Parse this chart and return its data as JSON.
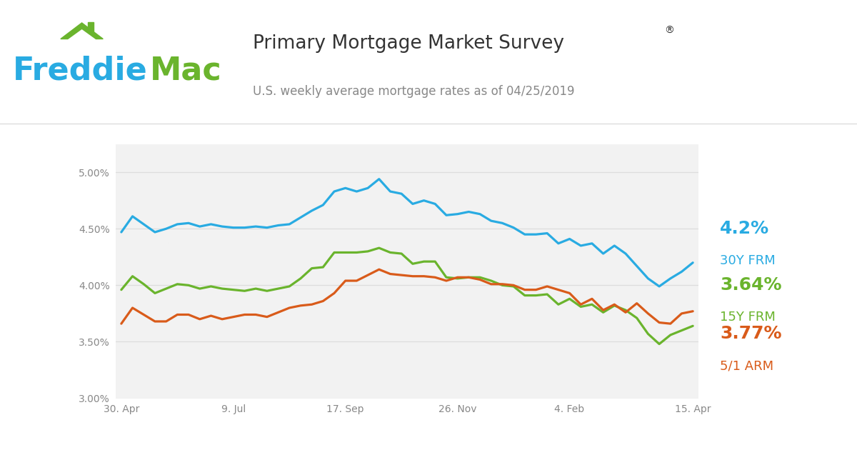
{
  "title_main": "Primary Mortgage Market Survey",
  "title_reg": "®",
  "subtitle": "U.S. weekly average mortgage rates as of 04/25/2019",
  "freddie_blue": "#29ABE2",
  "freddie_green": "#6AB42D",
  "line_30y_color": "#29ABE2",
  "line_15y_color": "#6AB42D",
  "line_arm_color": "#D95B1A",
  "background_color": "#FFFFFF",
  "chart_bg_color": "#F2F2F2",
  "grid_color": "#DDDDDD",
  "tick_color": "#888888",
  "title_color": "#333333",
  "subtitle_color": "#888888",
  "val_30y": "4.2%",
  "lbl_30y": "30Y FRM",
  "val_15y": "3.64%",
  "lbl_15y": "15Y FRM",
  "val_arm": "3.77%",
  "lbl_arm": "5/1 ARM",
  "ylim": [
    3.0,
    5.25
  ],
  "yticks": [
    3.0,
    3.5,
    4.0,
    4.5,
    5.0
  ],
  "xtick_labels": [
    "30. Apr",
    "9. Jul",
    "17. Sep",
    "26. Nov",
    "4. Feb",
    "15. Apr"
  ],
  "xtick_positions": [
    0,
    10,
    20,
    30,
    40,
    51
  ],
  "dates_30y": [
    4.47,
    4.61,
    4.54,
    4.47,
    4.5,
    4.54,
    4.55,
    4.52,
    4.54,
    4.52,
    4.51,
    4.51,
    4.52,
    4.51,
    4.53,
    4.54,
    4.6,
    4.66,
    4.71,
    4.83,
    4.86,
    4.83,
    4.86,
    4.94,
    4.83,
    4.81,
    4.72,
    4.75,
    4.72,
    4.62,
    4.63,
    4.65,
    4.63,
    4.57,
    4.55,
    4.51,
    4.45,
    4.45,
    4.46,
    4.37,
    4.41,
    4.35,
    4.37,
    4.28,
    4.35,
    4.28,
    4.17,
    4.06,
    3.99,
    4.06,
    4.12,
    4.2
  ],
  "dates_15y": [
    3.96,
    4.08,
    4.01,
    3.93,
    3.97,
    4.01,
    4.0,
    3.97,
    3.99,
    3.97,
    3.96,
    3.95,
    3.97,
    3.95,
    3.97,
    3.99,
    4.06,
    4.15,
    4.16,
    4.29,
    4.29,
    4.29,
    4.3,
    4.33,
    4.29,
    4.28,
    4.19,
    4.21,
    4.21,
    4.07,
    4.06,
    4.07,
    4.07,
    4.04,
    4.0,
    3.99,
    3.91,
    3.91,
    3.92,
    3.83,
    3.88,
    3.81,
    3.83,
    3.76,
    3.82,
    3.78,
    3.71,
    3.57,
    3.48,
    3.56,
    3.6,
    3.64
  ],
  "dates_arm": [
    3.66,
    3.8,
    3.74,
    3.68,
    3.68,
    3.74,
    3.74,
    3.7,
    3.73,
    3.7,
    3.72,
    3.74,
    3.74,
    3.72,
    3.76,
    3.8,
    3.82,
    3.83,
    3.86,
    3.93,
    4.04,
    4.04,
    4.09,
    4.14,
    4.1,
    4.09,
    4.08,
    4.08,
    4.07,
    4.04,
    4.07,
    4.07,
    4.05,
    4.01,
    4.01,
    4.0,
    3.96,
    3.96,
    3.99,
    3.96,
    3.93,
    3.83,
    3.88,
    3.78,
    3.83,
    3.76,
    3.84,
    3.75,
    3.67,
    3.66,
    3.75,
    3.77
  ]
}
